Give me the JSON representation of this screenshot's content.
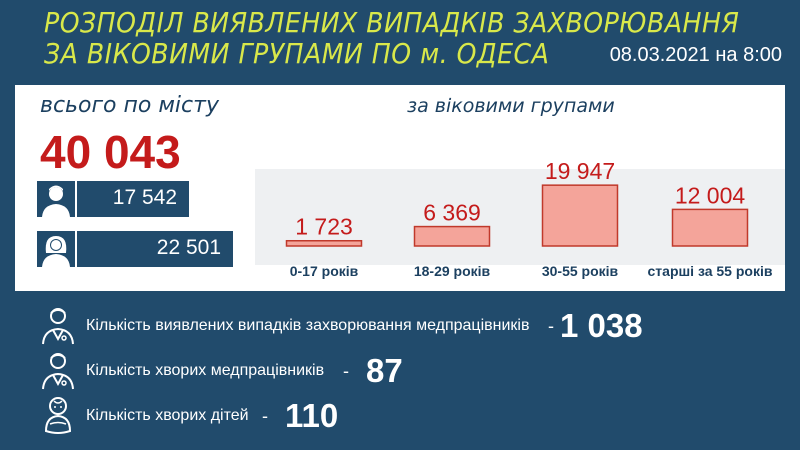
{
  "header": {
    "title_line1": "РОЗПОДІЛ ВИЯВЛЕНИХ ВИПАДКІВ ЗАХВОРЮВАННЯ",
    "title_line2": "ЗА ВІКОВИМИ ГРУПАМИ ПО м. ОДЕСА",
    "date": "08.03.2021 на 8:00"
  },
  "summary": {
    "total_label": "всього по місту",
    "total_value": "40 043",
    "male_value": "17 542",
    "female_value": "22 501",
    "male_icon": "man-icon",
    "female_icon": "woman-icon"
  },
  "chart_data": {
    "type": "bar",
    "title": "за віковими групами",
    "categories": [
      "0-17 років",
      "18-29 років",
      "30-55 років",
      "старші за 55 років"
    ],
    "values": [
      1723,
      6369,
      19947,
      12004
    ],
    "value_labels": [
      "1 723",
      "6 369",
      "19 947",
      "12 004"
    ],
    "ylim": [
      0,
      20000
    ],
    "bar_color": "#f4a49a",
    "bar_border": "#c0392b",
    "label_color": "#c41b1b"
  },
  "stats": [
    {
      "label": "Кількість виявлених випадків захворювання медпрацівників",
      "value": "1 038",
      "icon": "doctor-icon"
    },
    {
      "label": "Кількість хворих медпрацівників",
      "value": "87",
      "icon": "doctor-icon"
    },
    {
      "label": "Кількість хворих дітей",
      "value": "110",
      "icon": "baby-icon"
    }
  ],
  "colors": {
    "background": "#214b6c",
    "title": "#d9e84a",
    "accent_red": "#c41b1b"
  }
}
